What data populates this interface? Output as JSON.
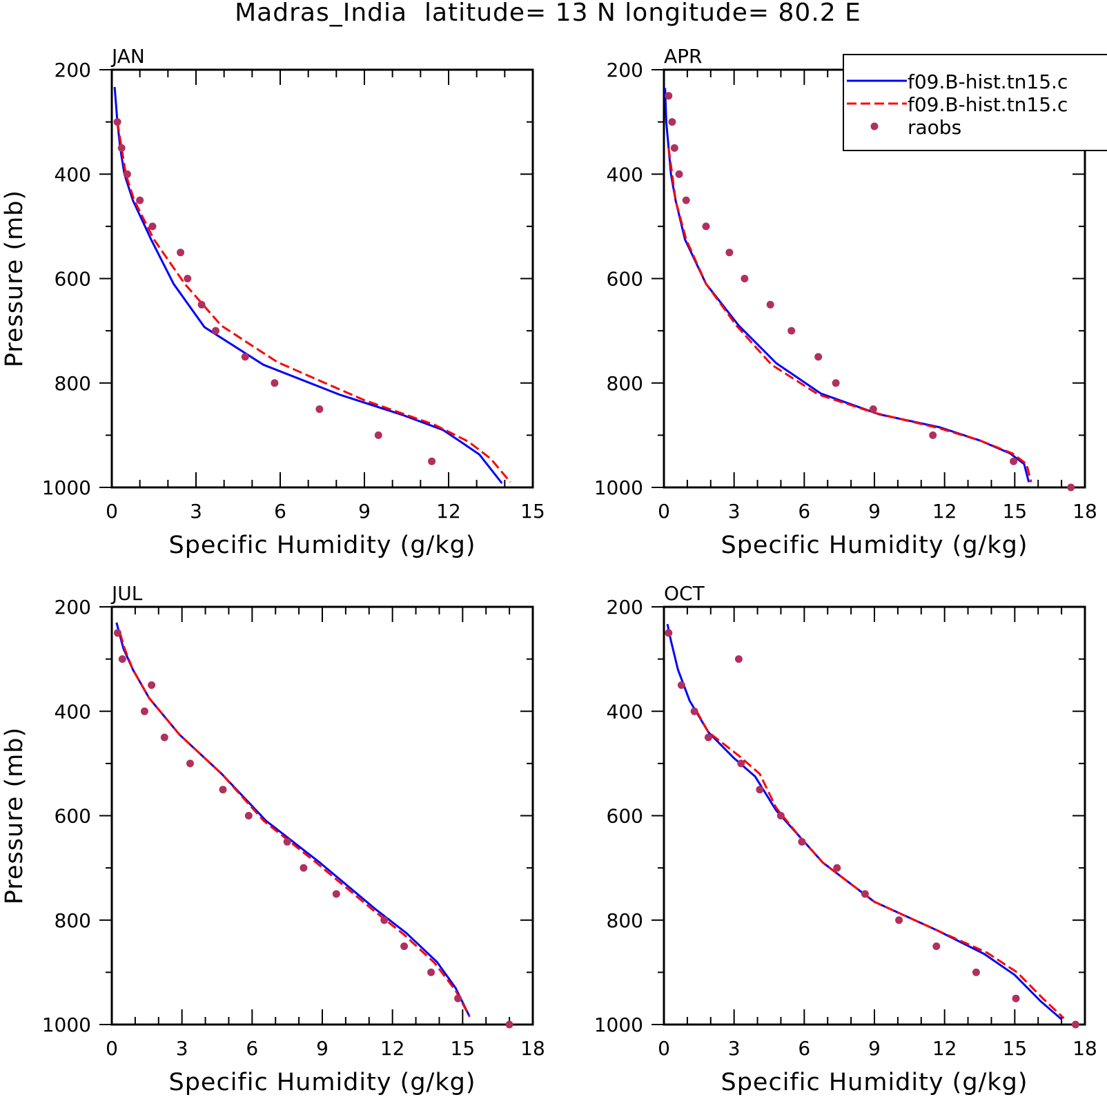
{
  "title": "Madras_India  latitude= 13 N longitude= 80.2 E",
  "colors": {
    "series_1": "#0000ff",
    "series_2": "#ff0000",
    "raobs": "#b03060",
    "axes": "#000000"
  },
  "legend": {
    "placement": "top-right",
    "entries": [
      "f09.B-hist.tn15.c",
      "f09.B-hist.tn15.c",
      "raobs"
    ]
  },
  "chart_data": [
    {
      "type": "line",
      "title": "JAN",
      "xlabel": "Specific Humidity (g/kg)",
      "ylabel": "Pressure (mb)",
      "xlim": [
        0,
        15
      ],
      "ylim": [
        1000,
        200
      ],
      "xticks": [
        0,
        3,
        6,
        9,
        12,
        15
      ],
      "yticks": [
        200,
        400,
        600,
        800,
        1000
      ],
      "grid": false,
      "series": [
        {
          "name": "f09.B-hist.tn15.c",
          "style": "solid",
          "x": [
            0.1,
            0.2,
            0.3,
            0.45,
            0.75,
            1.4,
            2.2,
            3.3,
            5.4,
            8.1,
            10.4,
            11.8,
            12.5,
            13.1,
            13.9
          ],
          "y": [
            233,
            300,
            350,
            400,
            450,
            525,
            610,
            693,
            765,
            822,
            862,
            890,
            915,
            937,
            992
          ]
        },
        {
          "name": "f09.B-hist.tn15.c",
          "style": "dashed",
          "x": [
            0.2,
            0.35,
            0.5,
            0.8,
            1.5,
            2.6,
            3.9,
            5.9,
            9.0,
            11.5,
            12.7,
            13.5,
            14.2
          ],
          "y": [
            300,
            350,
            400,
            450,
            525,
            610,
            690,
            760,
            833,
            880,
            912,
            945,
            990
          ]
        }
      ],
      "raobs": {
        "x": [
          0.2,
          0.35,
          0.55,
          1.0,
          1.45,
          2.45,
          2.7,
          3.2,
          3.7,
          4.75,
          5.8,
          7.4,
          9.5,
          11.4
        ],
        "y": [
          300,
          350,
          400,
          450,
          500,
          550,
          600,
          650,
          700,
          750,
          800,
          850,
          900,
          950
        ]
      }
    },
    {
      "type": "line",
      "title": "APR",
      "xlabel": "Specific Humidity (g/kg)",
      "ylabel": "",
      "xlim": [
        0,
        18
      ],
      "ylim": [
        1000,
        200
      ],
      "xticks": [
        0,
        3,
        6,
        9,
        12,
        15,
        18
      ],
      "yticks": [
        200,
        400,
        600,
        800,
        1000
      ],
      "grid": false,
      "series": [
        {
          "name": "f09.B-hist.tn15.c",
          "style": "solid",
          "x": [
            0.05,
            0.1,
            0.2,
            0.3,
            0.5,
            0.9,
            1.8,
            3.2,
            4.8,
            6.7,
            9.2,
            11.8,
            13.5,
            14.8,
            15.4,
            15.6
          ],
          "y": [
            235,
            300,
            350,
            400,
            450,
            525,
            610,
            690,
            762,
            820,
            860,
            885,
            910,
            935,
            955,
            990
          ]
        },
        {
          "name": "f09.B-hist.tn15.c",
          "style": "dashed",
          "x": [
            0.2,
            0.35,
            0.5,
            0.95,
            1.8,
            3.1,
            4.6,
            6.6,
            9.0,
            11.8,
            13.5,
            14.9,
            15.5,
            15.7
          ],
          "y": [
            350,
            400,
            450,
            525,
            610,
            690,
            765,
            822,
            857,
            887,
            910,
            935,
            955,
            990
          ]
        }
      ],
      "raobs": {
        "x": [
          0.2,
          0.35,
          0.45,
          0.65,
          0.95,
          1.8,
          2.8,
          3.45,
          4.55,
          5.45,
          6.6,
          7.35,
          8.95,
          11.5,
          14.95,
          17.4
        ],
        "y": [
          250,
          300,
          350,
          400,
          450,
          500,
          550,
          600,
          650,
          700,
          750,
          800,
          850,
          900,
          950,
          1000
        ]
      }
    },
    {
      "type": "line",
      "title": "JUL",
      "xlabel": "Specific Humidity (g/kg)",
      "ylabel": "Pressure (mb)",
      "xlim": [
        0,
        18
      ],
      "ylim": [
        1000,
        200
      ],
      "xticks": [
        0,
        3,
        6,
        9,
        12,
        15,
        18
      ],
      "yticks": [
        200,
        400,
        600,
        800,
        1000
      ],
      "grid": false,
      "series": [
        {
          "name": "f09.B-hist.tn15.c",
          "style": "solid",
          "x": [
            0.2,
            0.5,
            0.9,
            1.6,
            2.9,
            4.7,
            6.6,
            8.9,
            11.3,
            12.6,
            13.9,
            14.7,
            15.3
          ],
          "y": [
            230,
            280,
            320,
            375,
            445,
            520,
            610,
            690,
            780,
            825,
            880,
            930,
            985
          ]
        },
        {
          "name": "f09.B-hist.tn15.c",
          "style": "dashed",
          "x": [
            0.35,
            0.55,
            0.9,
            1.6,
            2.9,
            4.7,
            6.5,
            8.8,
            11.2,
            12.5,
            13.8,
            14.7,
            15.3
          ],
          "y": [
            250,
            280,
            320,
            375,
            445,
            520,
            610,
            692,
            782,
            828,
            882,
            935,
            985
          ]
        }
      ],
      "raobs": {
        "x": [
          0.25,
          0.45,
          1.7,
          1.4,
          2.25,
          3.35,
          4.75,
          5.85,
          7.5,
          8.2,
          9.6,
          11.65,
          12.5,
          13.65,
          14.8,
          17.0
        ],
        "y": [
          250,
          300,
          350,
          400,
          450,
          500,
          550,
          600,
          650,
          700,
          750,
          800,
          850,
          900,
          950,
          1000
        ]
      }
    },
    {
      "type": "line",
      "title": "OCT",
      "xlabel": "Specific Humidity (g/kg)",
      "ylabel": "",
      "xlim": [
        0,
        18
      ],
      "ylim": [
        1000,
        200
      ],
      "xticks": [
        0,
        3,
        6,
        9,
        12,
        15,
        18
      ],
      "yticks": [
        200,
        400,
        600,
        800,
        1000
      ],
      "grid": false,
      "series": [
        {
          "name": "f09.B-hist.tn15.c",
          "style": "solid",
          "x": [
            0.15,
            0.3,
            0.6,
            1.1,
            1.9,
            3.0,
            3.9,
            4.8,
            5.8,
            6.8,
            9.0,
            11.7,
            13.7,
            15.0,
            16.1,
            17.0
          ],
          "y": [
            233,
            265,
            320,
            380,
            440,
            490,
            525,
            590,
            640,
            690,
            765,
            820,
            865,
            905,
            955,
            990
          ]
        },
        {
          "name": "f09.B-hist.tn15.c",
          "style": "dashed",
          "x": [
            1.4,
            1.9,
            3.2,
            4.1,
            4.8,
            5.8,
            6.8,
            9.0,
            11.8,
            13.8,
            15.1,
            16.2,
            17.1
          ],
          "y": [
            400,
            440,
            485,
            520,
            585,
            640,
            690,
            765,
            822,
            862,
            900,
            950,
            988
          ]
        }
      ],
      "raobs": {
        "x": [
          0.2,
          3.2,
          0.75,
          1.3,
          1.9,
          3.3,
          4.1,
          5.0,
          5.9,
          7.4,
          8.6,
          10.05,
          11.65,
          13.35,
          15.05,
          17.6
        ],
        "y": [
          250,
          300,
          350,
          400,
          450,
          500,
          550,
          600,
          650,
          700,
          750,
          800,
          850,
          900,
          950,
          1000
        ]
      }
    }
  ]
}
